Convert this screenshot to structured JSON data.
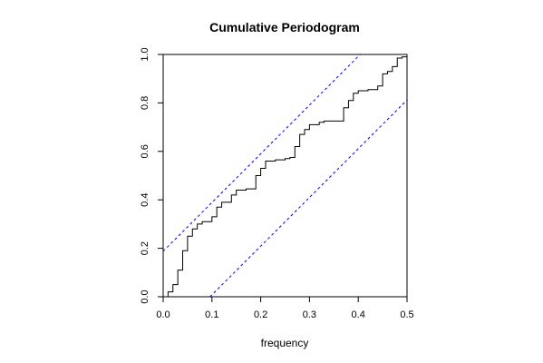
{
  "chart_data": {
    "type": "line",
    "title": "Cumulative Periodogram",
    "xlabel": "frequency",
    "ylabel": "",
    "xlim": [
      0.0,
      0.5
    ],
    "ylim": [
      0.0,
      1.0
    ],
    "xticks": [
      "0.0",
      "0.1",
      "0.2",
      "0.3",
      "0.4",
      "0.5"
    ],
    "yticks": [
      "0.0",
      "0.2",
      "0.4",
      "0.6",
      "0.8",
      "1.0"
    ],
    "grid": false,
    "step": {
      "x": [
        0.0,
        0.01,
        0.02,
        0.03,
        0.04,
        0.05,
        0.06,
        0.07,
        0.08,
        0.09,
        0.1,
        0.11,
        0.12,
        0.13,
        0.14,
        0.15,
        0.16,
        0.17,
        0.18,
        0.19,
        0.2,
        0.21,
        0.22,
        0.23,
        0.24,
        0.25,
        0.26,
        0.27,
        0.28,
        0.29,
        0.3,
        0.31,
        0.32,
        0.33,
        0.34,
        0.35,
        0.36,
        0.37,
        0.38,
        0.39,
        0.4,
        0.41,
        0.42,
        0.43,
        0.44,
        0.45,
        0.46,
        0.47,
        0.48,
        0.49,
        0.5
      ],
      "y": [
        0.0,
        0.02,
        0.05,
        0.11,
        0.19,
        0.25,
        0.28,
        0.3,
        0.31,
        0.31,
        0.33,
        0.37,
        0.39,
        0.39,
        0.42,
        0.44,
        0.44,
        0.445,
        0.445,
        0.5,
        0.53,
        0.56,
        0.56,
        0.565,
        0.565,
        0.57,
        0.575,
        0.62,
        0.67,
        0.69,
        0.71,
        0.71,
        0.72,
        0.725,
        0.725,
        0.725,
        0.725,
        0.78,
        0.81,
        0.84,
        0.85,
        0.85,
        0.855,
        0.855,
        0.87,
        0.92,
        0.93,
        0.95,
        0.985,
        0.99,
        0.99
      ]
    },
    "bounds": {
      "upper": {
        "x": [
          0.0,
          0.404
        ],
        "y": [
          0.188,
          1.0
        ]
      },
      "lower": {
        "x": [
          0.096,
          0.5
        ],
        "y": [
          0.0,
          0.812
        ]
      }
    },
    "colors": {
      "line": "#000000",
      "bounds": "#0000ff",
      "axes": "#000000"
    }
  }
}
